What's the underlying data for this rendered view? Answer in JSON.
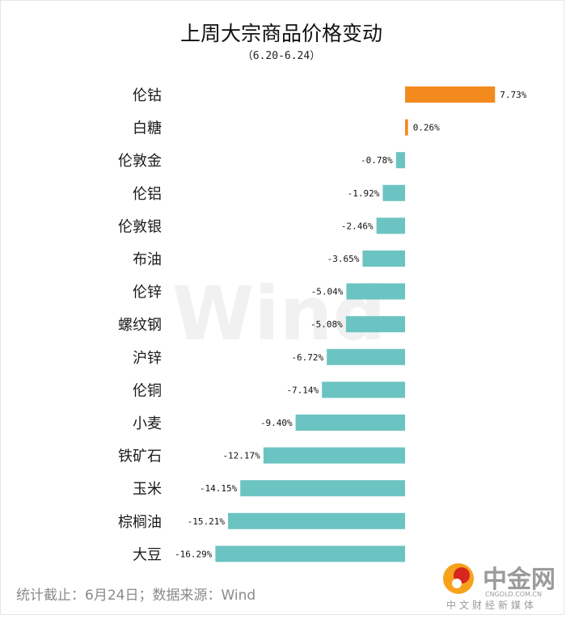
{
  "chart_data": {
    "type": "bar",
    "orientation": "horizontal",
    "title": "上周大宗商品价格变动",
    "subtitle": "（6.20-6.24）",
    "categories": [
      "伦钴",
      "白糖",
      "伦敦金",
      "伦铝",
      "伦敦银",
      "布油",
      "伦锌",
      "螺纹钢",
      "沪锌",
      "伦铜",
      "小麦",
      "铁矿石",
      "玉米",
      "棕榈油",
      "大豆"
    ],
    "values": [
      7.73,
      0.26,
      -0.78,
      -1.92,
      -2.46,
      -3.65,
      -5.04,
      -5.08,
      -6.72,
      -7.14,
      -9.4,
      -12.17,
      -14.15,
      -15.21,
      -16.29
    ],
    "value_labels": [
      "7.73%",
      "0.26%",
      "-0.78%",
      "-1.92%",
      "-2.46%",
      "-3.65%",
      "-5.04%",
      "-5.08%",
      "-6.72%",
      "-7.14%",
      "-9.40%",
      "-12.17%",
      "-14.15%",
      "-15.21%",
      "-16.29%"
    ],
    "unit": "%",
    "colors": {
      "positive": "#f28a1e",
      "negative": "#6cc4c2"
    },
    "grid": false,
    "legend": "none"
  },
  "watermark": "Wind",
  "source": "统计截止：6月24日；数据来源：Wind",
  "brand": {
    "name": "中金网",
    "url": "CNGOLD.COM.CN",
    "tagline": "中文财经新媒体",
    "logo_icon": "cngold-logo-icon"
  }
}
